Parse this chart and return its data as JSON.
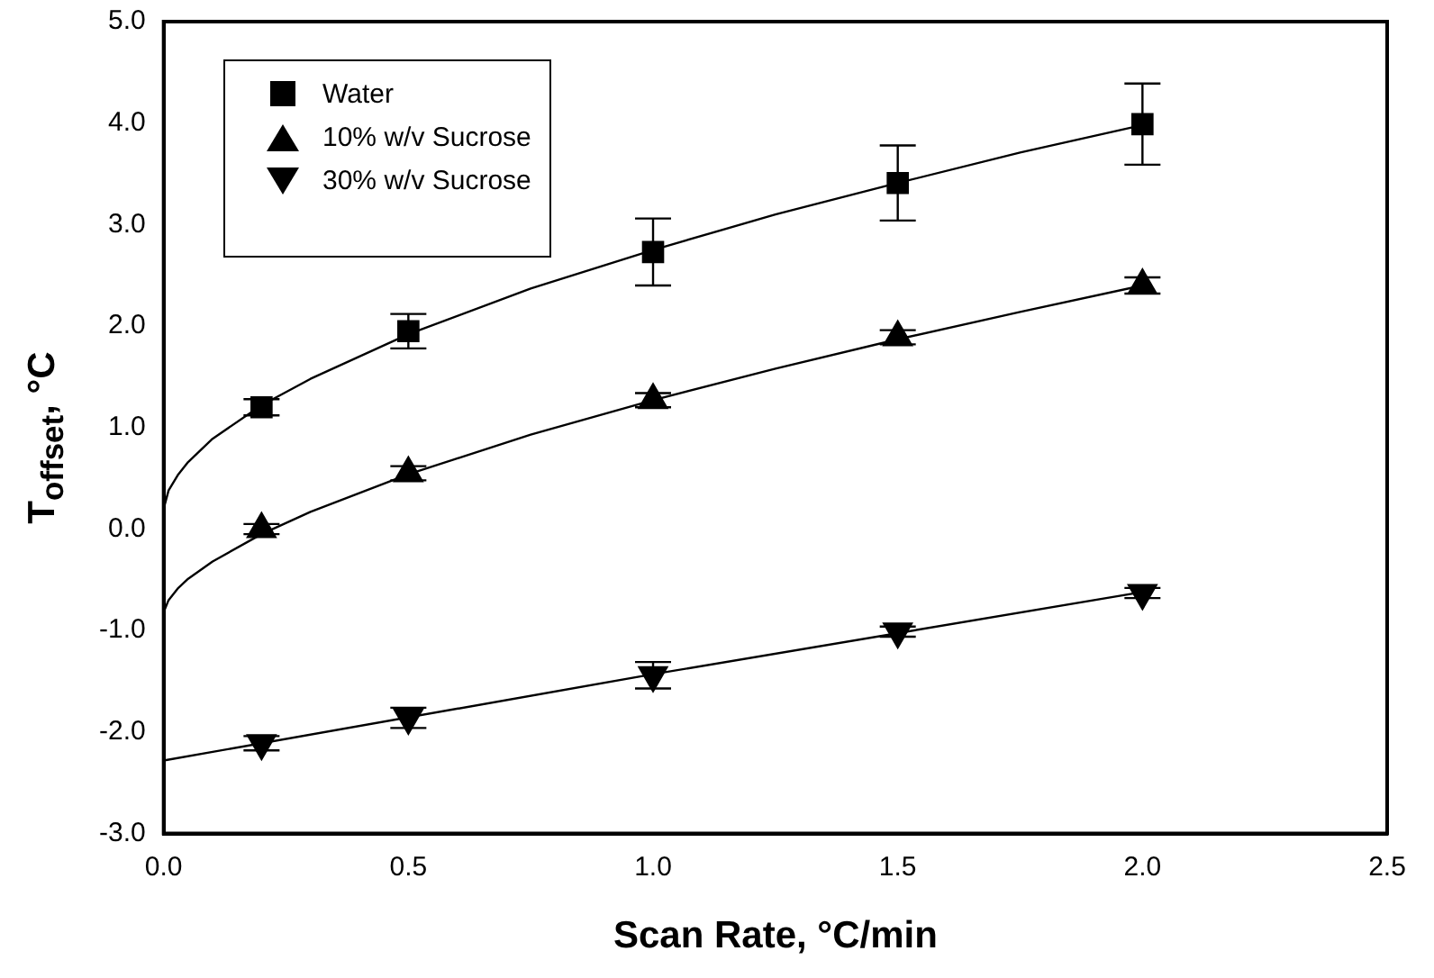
{
  "chart_data": {
    "type": "scatter",
    "xlabel": "Scan Rate, °C/min",
    "ylabel": "T$_{offset}$, °C",
    "x": [
      0.2,
      0.5,
      1.0,
      1.5,
      2.0
    ],
    "xlim": [
      0,
      2.5
    ],
    "xticks": [
      {
        "value": 0,
        "label": "0.0"
      },
      0.5,
      {
        "value": 1,
        "label": "1.0"
      },
      1.5,
      {
        "value": 2,
        "label": "2.0"
      },
      2.5
    ],
    "ylim": [
      -3,
      5
    ],
    "yticks": [
      {
        "value": -3,
        "label": "-3.0"
      },
      {
        "value": -2,
        "label": "-2.0"
      },
      {
        "value": -1,
        "label": "-1.0"
      },
      {
        "value": 0,
        "label": "0.0"
      },
      {
        "value": 1,
        "label": "1.0"
      },
      {
        "value": 2,
        "label": "2.0"
      },
      {
        "value": 3,
        "label": "3.0"
      },
      {
        "value": 4,
        "label": "4.0"
      },
      {
        "value": 5,
        "label": "5.0"
      }
    ],
    "grid": false,
    "legend": "top left",
    "series": [
      {
        "name": "Water",
        "marker": "square",
        "color": "#000000",
        "values": [
          1.2,
          1.95,
          2.73,
          3.41,
          3.99
        ],
        "errors": [
          0.08,
          0.17,
          0.33,
          0.37,
          0.4
        ]
      },
      {
        "name": "10% w/v Sucrose",
        "marker": "triangle",
        "color": "#000000",
        "values": [
          0.0,
          0.55,
          1.27,
          1.89,
          2.4
        ],
        "errors": [
          0.05,
          0.07,
          0.07,
          0.07,
          0.08
        ]
      },
      {
        "name": "30% w/v Sucrose",
        "marker": "triangle-down",
        "color": "#000000",
        "values": [
          -2.11,
          -1.86,
          -1.44,
          -1.01,
          -0.63
        ],
        "errors": [
          0.07,
          0.1,
          0.13,
          0.05,
          0.05
        ]
      },
      {
        "type": "line",
        "marker": "none",
        "color": "#000000",
        "x": [
          0,
          0.01,
          0.03,
          0.05,
          0.1,
          0.2,
          0.3,
          0.5,
          0.75,
          1.0,
          1.25,
          1.5,
          1.75,
          2.0
        ],
        "values": [
          0.2,
          0.38,
          0.54,
          0.66,
          0.89,
          1.22,
          1.48,
          1.92,
          2.37,
          2.75,
          3.1,
          3.41,
          3.71,
          3.98
        ]
      },
      {
        "type": "line",
        "marker": "none",
        "color": "#000000",
        "x": [
          0,
          0.01,
          0.03,
          0.05,
          0.1,
          0.2,
          0.3,
          0.5,
          0.75,
          1.0,
          1.25,
          1.5,
          1.75,
          2.0
        ],
        "values": [
          -0.82,
          -0.7,
          -0.58,
          -0.49,
          -0.32,
          -0.05,
          0.17,
          0.54,
          0.93,
          1.27,
          1.58,
          1.87,
          2.14,
          2.4
        ]
      },
      {
        "type": "line",
        "marker": "none",
        "color": "#000000",
        "x": [
          0,
          1.0,
          2.0
        ],
        "values": [
          -2.28,
          -1.43,
          -0.62
        ]
      }
    ]
  }
}
